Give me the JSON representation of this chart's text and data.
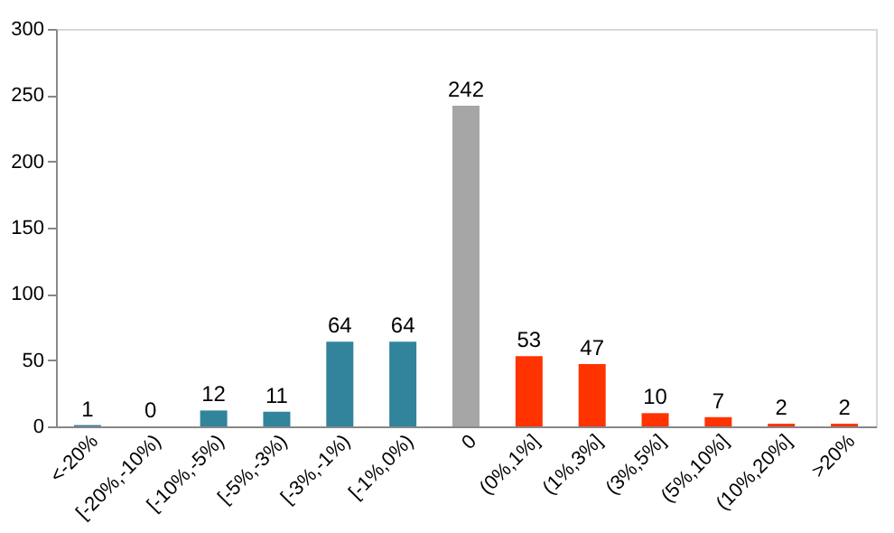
{
  "chart_data": {
    "type": "bar",
    "categories": [
      "<-20%",
      "[-20%,-10%)",
      "[-10%,-5%)",
      "[-5%,-3%)",
      "[-3%,-1%)",
      "[-1%,0%)",
      "0",
      "(0%,1%]",
      "(1%,3%]",
      "(3%,5%]",
      "(5%,10%]",
      "(10%,20%]",
      ">20%"
    ],
    "values": [
      1,
      0,
      12,
      11,
      64,
      64,
      242,
      53,
      47,
      10,
      7,
      2,
      2
    ],
    "colors": [
      "#31849b",
      "#31849b",
      "#31849b",
      "#31849b",
      "#31849b",
      "#31849b",
      "#a6a6a6",
      "#ff3300",
      "#ff3300",
      "#ff3300",
      "#ff3300",
      "#ff3300",
      "#ff3300"
    ],
    "ylim": [
      0,
      300
    ],
    "yticks": [
      0,
      50,
      100,
      150,
      200,
      250,
      300
    ],
    "data_labels": true,
    "grid": false,
    "legend": false
  }
}
